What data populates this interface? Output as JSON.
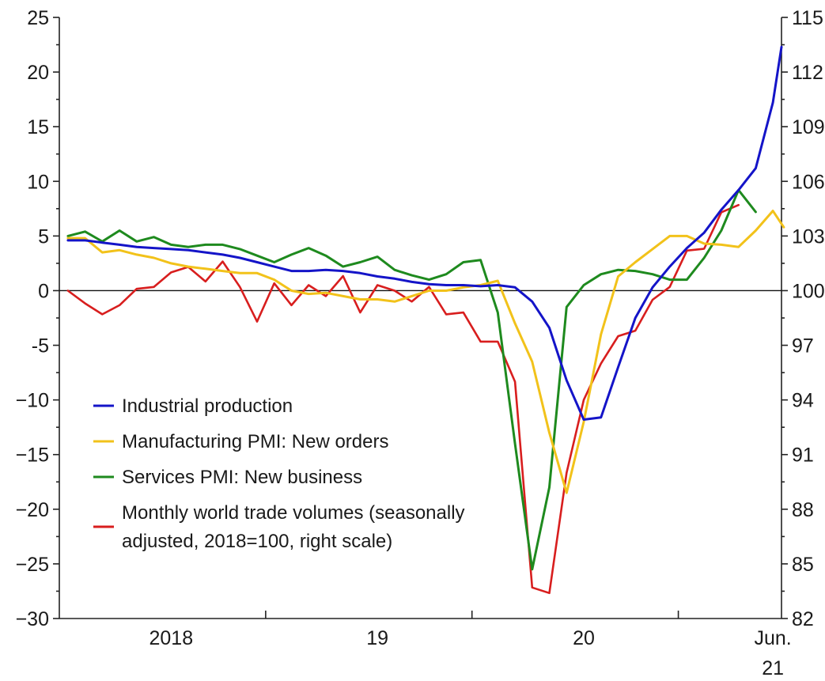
{
  "chart_data": {
    "type": "line",
    "title": "",
    "xlabel": "",
    "ylabel": "",
    "ylim": [
      -30,
      25
    ],
    "y2lim": [
      82,
      115
    ],
    "y_ticks": [
      25,
      20,
      15,
      10,
      5,
      0,
      -5,
      -10,
      -15,
      -20,
      -25,
      -30
    ],
    "y_tick_labels": [
      "25",
      "20",
      "15",
      "10",
      "5",
      "0",
      "-5",
      "−10",
      "−15",
      "−20",
      "−25",
      "−30"
    ],
    "y2_ticks": [
      115,
      112,
      109,
      106,
      103,
      100,
      97,
      94,
      91,
      88,
      85,
      82
    ],
    "y2_tick_labels": [
      "115",
      "112",
      "109",
      "106",
      "103",
      "100",
      "97",
      "94",
      "91",
      "88",
      "85",
      "82"
    ],
    "x_range_months": [
      "2018-01",
      "2021-06"
    ],
    "x_labels": [
      {
        "text": "2018",
        "at": "2018-07"
      },
      {
        "text": "19",
        "at": "2019-07"
      },
      {
        "text": "20",
        "at": "2020-07"
      },
      {
        "text": "Jun.",
        "at": "2021-06"
      },
      {
        "text": "21",
        "at": "2021-06"
      }
    ],
    "x_ticks": [
      "2019-01",
      "2020-01",
      "2021-01"
    ],
    "legend_position": "lower-left",
    "series": [
      {
        "name": "Industrial production",
        "color": "#1414c8",
        "axis": "left",
        "values": [
          [
            "2018-01",
            4.6
          ],
          [
            "2018-02",
            4.6
          ],
          [
            "2018-03",
            4.4
          ],
          [
            "2018-04",
            4.2
          ],
          [
            "2018-05",
            4.0
          ],
          [
            "2018-06",
            3.9
          ],
          [
            "2018-07",
            3.8
          ],
          [
            "2018-08",
            3.7
          ],
          [
            "2018-09",
            3.5
          ],
          [
            "2018-10",
            3.3
          ],
          [
            "2018-11",
            3.0
          ],
          [
            "2018-12",
            2.6
          ],
          [
            "2019-01",
            2.2
          ],
          [
            "2019-02",
            1.8
          ],
          [
            "2019-03",
            1.8
          ],
          [
            "2019-04",
            1.9
          ],
          [
            "2019-05",
            1.8
          ],
          [
            "2019-06",
            1.6
          ],
          [
            "2019-07",
            1.3
          ],
          [
            "2019-08",
            1.1
          ],
          [
            "2019-09",
            0.8
          ],
          [
            "2019-10",
            0.6
          ],
          [
            "2019-11",
            0.5
          ],
          [
            "2019-12",
            0.5
          ],
          [
            "2020-01",
            0.4
          ],
          [
            "2020-02",
            0.5
          ],
          [
            "2020-03",
            0.3
          ],
          [
            "2020-04",
            -1.0
          ],
          [
            "2020-05",
            -3.4
          ],
          [
            "2020-06",
            -8.2
          ],
          [
            "2020-07",
            -11.8
          ],
          [
            "2020-08",
            -11.6
          ],
          [
            "2020-09",
            -7.0
          ],
          [
            "2020-10",
            -2.5
          ],
          [
            "2020-11",
            0.3
          ],
          [
            "2020-12",
            2.2
          ],
          [
            "2021-01",
            3.9
          ],
          [
            "2021-02",
            5.3
          ],
          [
            "2021-03",
            7.4
          ],
          [
            "2021-04",
            9.2
          ],
          [
            "2021-05",
            11.2
          ],
          [
            "2021-06",
            17.2
          ],
          [
            "2021-06-16",
            22.3
          ]
        ]
      },
      {
        "name": "Manufacturing PMI: New orders",
        "color": "#f2c21a",
        "axis": "left",
        "values": [
          [
            "2018-01",
            4.8
          ],
          [
            "2018-02",
            4.8
          ],
          [
            "2018-03",
            3.5
          ],
          [
            "2018-04",
            3.7
          ],
          [
            "2018-05",
            3.3
          ],
          [
            "2018-06",
            3.0
          ],
          [
            "2018-07",
            2.5
          ],
          [
            "2018-08",
            2.2
          ],
          [
            "2018-09",
            2.0
          ],
          [
            "2018-10",
            1.8
          ],
          [
            "2018-11",
            1.6
          ],
          [
            "2018-12",
            1.6
          ],
          [
            "2019-01",
            1.0
          ],
          [
            "2019-02",
            0.0
          ],
          [
            "2019-03",
            -0.3
          ],
          [
            "2019-04",
            -0.2
          ],
          [
            "2019-05",
            -0.5
          ],
          [
            "2019-06",
            -0.8
          ],
          [
            "2019-07",
            -0.8
          ],
          [
            "2019-08",
            -1.0
          ],
          [
            "2019-09",
            -0.5
          ],
          [
            "2019-10",
            0.0
          ],
          [
            "2019-11",
            0.0
          ],
          [
            "2019-12",
            0.3
          ],
          [
            "2020-01",
            0.5
          ],
          [
            "2020-02",
            0.9
          ],
          [
            "2020-03",
            -3.0
          ],
          [
            "2020-04",
            -6.5
          ],
          [
            "2020-05",
            -13.0
          ],
          [
            "2020-06",
            -18.5
          ],
          [
            "2020-07",
            -12.0
          ],
          [
            "2020-08",
            -4.0
          ],
          [
            "2020-09",
            1.3
          ],
          [
            "2020-10",
            2.6
          ],
          [
            "2020-11",
            3.8
          ],
          [
            "2020-12",
            5.0
          ],
          [
            "2021-01",
            5.0
          ],
          [
            "2021-02",
            4.3
          ],
          [
            "2021-03",
            4.2
          ],
          [
            "2021-04",
            4.0
          ],
          [
            "2021-05",
            5.5
          ],
          [
            "2021-06",
            7.3
          ],
          [
            "2021-06-20",
            5.8
          ]
        ]
      },
      {
        "name": "Services PMI: New business",
        "color": "#1e8a1e",
        "axis": "left",
        "values": [
          [
            "2018-01",
            5.0
          ],
          [
            "2018-02",
            5.4
          ],
          [
            "2018-03",
            4.5
          ],
          [
            "2018-04",
            5.5
          ],
          [
            "2018-05",
            4.5
          ],
          [
            "2018-06",
            4.9
          ],
          [
            "2018-07",
            4.2
          ],
          [
            "2018-08",
            4.0
          ],
          [
            "2018-09",
            4.2
          ],
          [
            "2018-10",
            4.2
          ],
          [
            "2018-11",
            3.8
          ],
          [
            "2018-12",
            3.2
          ],
          [
            "2019-01",
            2.6
          ],
          [
            "2019-02",
            3.3
          ],
          [
            "2019-03",
            3.9
          ],
          [
            "2019-04",
            3.2
          ],
          [
            "2019-05",
            2.2
          ],
          [
            "2019-06",
            2.6
          ],
          [
            "2019-07",
            3.1
          ],
          [
            "2019-08",
            1.9
          ],
          [
            "2019-09",
            1.4
          ],
          [
            "2019-10",
            1.0
          ],
          [
            "2019-11",
            1.5
          ],
          [
            "2019-12",
            2.6
          ],
          [
            "2020-01",
            2.8
          ],
          [
            "2020-02",
            -2.0
          ],
          [
            "2020-03",
            -14.0
          ],
          [
            "2020-04",
            -25.5
          ],
          [
            "2020-05",
            -18.0
          ],
          [
            "2020-06",
            -1.5
          ],
          [
            "2020-07",
            0.5
          ],
          [
            "2020-08",
            1.5
          ],
          [
            "2020-09",
            1.9
          ],
          [
            "2020-10",
            1.8
          ],
          [
            "2020-11",
            1.5
          ],
          [
            "2020-12",
            1.0
          ],
          [
            "2021-01",
            1.0
          ],
          [
            "2021-02",
            3.0
          ],
          [
            "2021-03",
            5.5
          ],
          [
            "2021-04",
            9.2
          ],
          [
            "2021-05",
            7.2
          ]
        ]
      },
      {
        "name": "Monthly world trade volumes (seasonally adjusted, 2018=100, right scale)",
        "color": "#d81e1e",
        "axis": "right",
        "values": [
          [
            "2018-01",
            100.0
          ],
          [
            "2018-02",
            99.3
          ],
          [
            "2018-03",
            98.7
          ],
          [
            "2018-04",
            99.2
          ],
          [
            "2018-05",
            100.1
          ],
          [
            "2018-06",
            100.2
          ],
          [
            "2018-07",
            101.0
          ],
          [
            "2018-08",
            101.3
          ],
          [
            "2018-09",
            100.5
          ],
          [
            "2018-10",
            101.6
          ],
          [
            "2018-11",
            100.2
          ],
          [
            "2018-12",
            98.3
          ],
          [
            "2019-01",
            100.4
          ],
          [
            "2019-02",
            99.2
          ],
          [
            "2019-03",
            100.3
          ],
          [
            "2019-04",
            99.7
          ],
          [
            "2019-05",
            100.8
          ],
          [
            "2019-06",
            98.8
          ],
          [
            "2019-07",
            100.3
          ],
          [
            "2019-08",
            100.0
          ],
          [
            "2019-09",
            99.4
          ],
          [
            "2019-10",
            100.2
          ],
          [
            "2019-11",
            98.7
          ],
          [
            "2019-12",
            98.8
          ],
          [
            "2020-01",
            97.2
          ],
          [
            "2020-02",
            97.2
          ],
          [
            "2020-03",
            95.0
          ],
          [
            "2020-04",
            83.7
          ],
          [
            "2020-05",
            83.4
          ],
          [
            "2020-06",
            90.0
          ],
          [
            "2020-07",
            94.0
          ],
          [
            "2020-08",
            96.0
          ],
          [
            "2020-09",
            97.5
          ],
          [
            "2020-10",
            97.8
          ],
          [
            "2020-11",
            99.5
          ],
          [
            "2020-12",
            100.2
          ],
          [
            "2021-01",
            102.2
          ],
          [
            "2021-02",
            102.3
          ],
          [
            "2021-03",
            104.3
          ],
          [
            "2021-04",
            104.7
          ]
        ]
      }
    ]
  },
  "legend": [
    {
      "lines": [
        "Industrial production"
      ],
      "color": "#1414c8"
    },
    {
      "lines": [
        "Manufacturing PMI: New orders"
      ],
      "color": "#f2c21a"
    },
    {
      "lines": [
        "Services PMI: New business"
      ],
      "color": "#1e8a1e"
    },
    {
      "lines": [
        "Monthly world trade volumes (seasonally",
        "adjusted, 2018=100, right scale)"
      ],
      "color": "#d81e1e"
    }
  ]
}
